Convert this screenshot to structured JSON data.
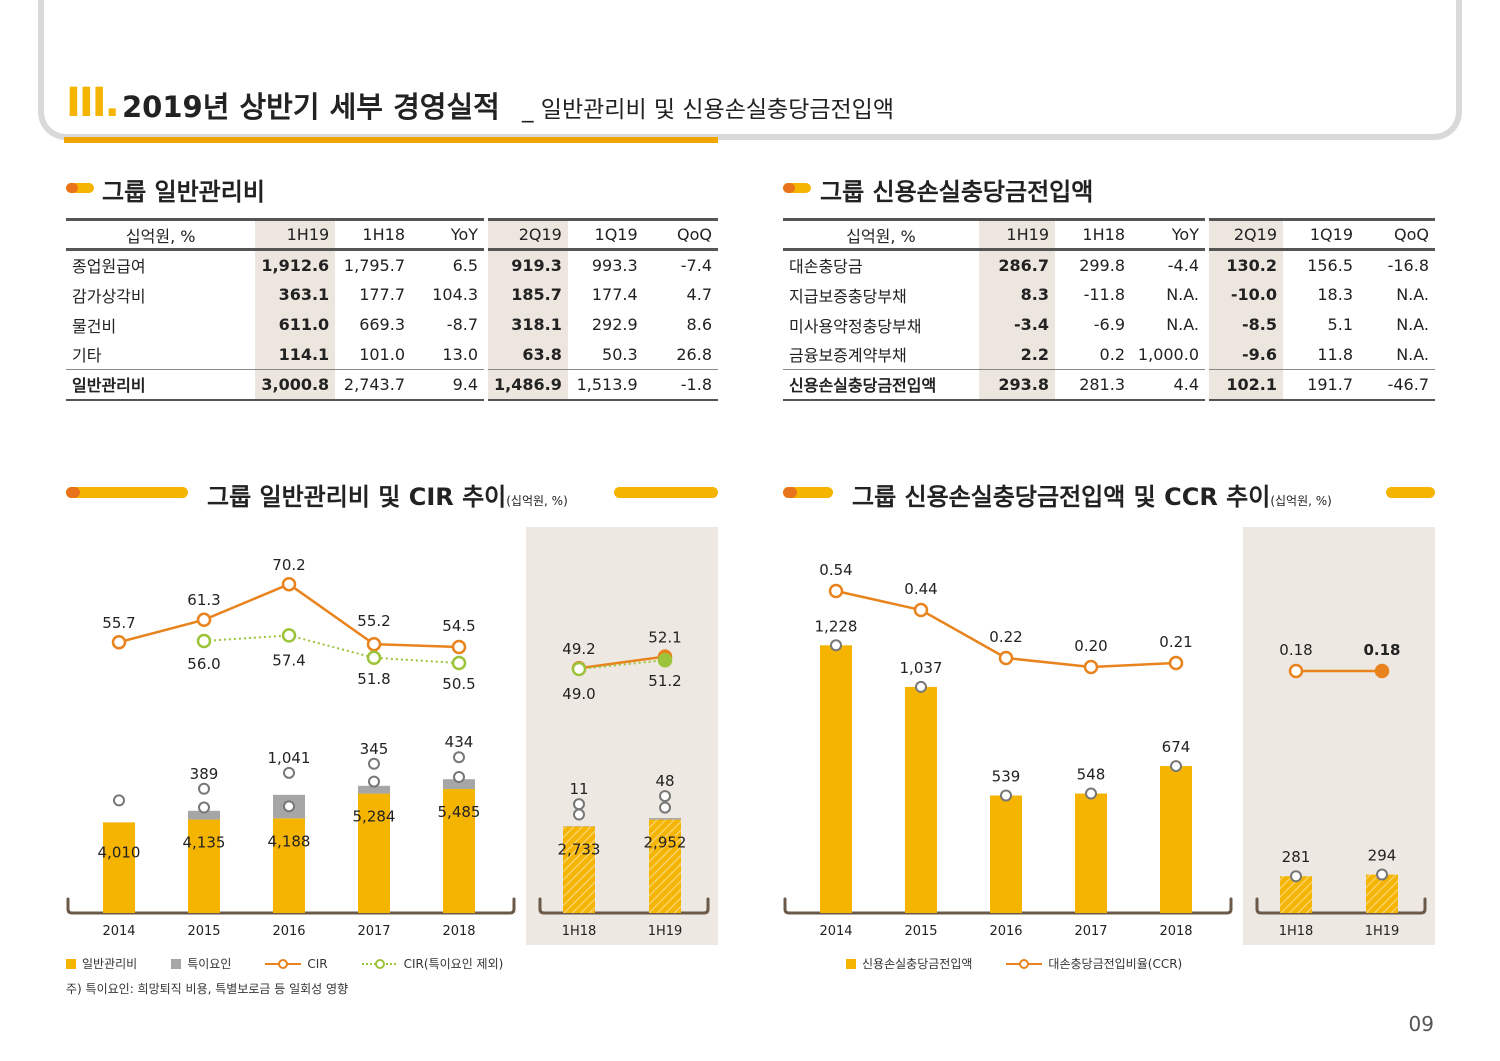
{
  "header": {
    "roman": "III",
    "title": "2019년 상반기 세부 경영실적",
    "subtitle": "_ 일반관리비 및 신용손실충당금전입액"
  },
  "left_table": {
    "title": "그룹 일반관리비",
    "headers": [
      "십억원, %",
      "1H19",
      "1H18",
      "YoY",
      "2Q19",
      "1Q19",
      "QoQ"
    ],
    "rows": [
      [
        "종업원급여",
        "1,912.6",
        "1,795.7",
        "6.5",
        "919.3",
        "993.3",
        "-7.4"
      ],
      [
        "감가상각비",
        "363.1",
        "177.7",
        "104.3",
        "185.7",
        "177.4",
        "4.7"
      ],
      [
        "물건비",
        "611.0",
        "669.3",
        "-8.7",
        "318.1",
        "292.9",
        "8.6"
      ],
      [
        "기타",
        "114.1",
        "101.0",
        "13.0",
        "63.8",
        "50.3",
        "26.8"
      ],
      [
        "일반관리비",
        "3,000.8",
        "2,743.7",
        "9.4",
        "1,486.9",
        "1,513.9",
        "-1.8"
      ]
    ]
  },
  "right_table": {
    "title": "그룹 신용손실충당금전입액",
    "headers": [
      "십억원, %",
      "1H19",
      "1H18",
      "YoY",
      "2Q19",
      "1Q19",
      "QoQ"
    ],
    "rows": [
      [
        "대손충당금",
        "286.7",
        "299.8",
        "-4.4",
        "130.2",
        "156.5",
        "-16.8"
      ],
      [
        "지급보증충당부채",
        "8.3",
        "-11.8",
        "N.A.",
        "-10.0",
        "18.3",
        "N.A."
      ],
      [
        "미사용약정충당부채",
        "-3.4",
        "-6.9",
        "N.A.",
        "-8.5",
        "5.1",
        "N.A."
      ],
      [
        "금융보증계약부채",
        "2.2",
        "0.2",
        "1,000.0",
        "-9.6",
        "11.8",
        "N.A."
      ],
      [
        "신용손실충당금전입액",
        "293.8",
        "281.3",
        "4.4",
        "102.1",
        "191.7",
        "-46.7"
      ]
    ]
  },
  "left_chart_title": "그룹 일반관리비 및 CIR 추이",
  "right_chart_title": "그룹 신용손실충당금전입액 및 CCR 추이",
  "unit_note": "(십억원, %)",
  "chart_data": [
    {
      "type": "bar",
      "title": "그룹 일반관리비 및 CIR 추이",
      "categories": [
        "2014",
        "2015",
        "2016",
        "2017",
        "2018",
        "1H18",
        "1H19"
      ],
      "series": [
        {
          "name": "일반관리비",
          "values": [
            4010,
            4135,
            4188,
            5284,
            5485,
            2733,
            2952
          ],
          "labels": [
            "4,010",
            "4,135",
            "4,188",
            "5,284",
            "5,485",
            "2,733",
            "2,952"
          ],
          "color": "#f5b400"
        },
        {
          "name": "특이요인",
          "values": [
            null,
            389,
            1041,
            345,
            434,
            11,
            48
          ],
          "labels": [
            "",
            "389",
            "1,041",
            "345",
            "434",
            "11",
            "48"
          ],
          "color": "#a6a6a6"
        },
        {
          "name": "CIR",
          "type": "line",
          "values": [
            55.7,
            61.3,
            70.2,
            55.2,
            54.5,
            49.2,
            52.1
          ],
          "labels": [
            "55.7",
            "61.3",
            "70.2",
            "55.2",
            "54.5",
            "49.2",
            "52.1"
          ],
          "color": "#e8831d"
        },
        {
          "name": "CIR(특이요인 제외)",
          "type": "line",
          "values": [
            null,
            56.0,
            57.4,
            51.8,
            50.5,
            49.0,
            51.2
          ],
          "labels": [
            "",
            "56.0",
            "57.4",
            "51.8",
            "50.5",
            "49.0",
            "51.2"
          ],
          "color": "#9cc43a"
        }
      ]
    },
    {
      "type": "bar",
      "title": "그룹 신용손실충당금전입액 및 CCR 추이",
      "categories": [
        "2014",
        "2015",
        "2016",
        "2017",
        "2018",
        "1H18",
        "1H19"
      ],
      "series": [
        {
          "name": "신용손실충당금전입액",
          "values": [
            1228,
            1037,
            539,
            548,
            674,
            281,
            294
          ],
          "labels": [
            "1,228",
            "1,037",
            "539",
            "548",
            "674",
            "281",
            "294"
          ],
          "color": "#f5b400"
        },
        {
          "name": "대손충당금전입비율(CCR)",
          "type": "line",
          "values": [
            0.54,
            0.44,
            0.22,
            0.2,
            0.21,
            0.18,
            0.18
          ],
          "labels": [
            "0.54",
            "0.44",
            "0.22",
            "0.20",
            "0.21",
            "0.18",
            "0.18"
          ],
          "color": "#e8831d"
        }
      ]
    }
  ],
  "legend_left": [
    "일반관리비",
    "특이요인",
    "CIR",
    "CIR(특이요인 제외)"
  ],
  "legend_right": [
    "신용손실충당금전입액",
    "대손충당금전입비율(CCR)"
  ],
  "footnote": "주) 특이요인: 희망퇴직 비용, 특별보로금 등 일회성 영향",
  "page_number": "09",
  "colors": {
    "accent": "#f5b400",
    "orange": "#e8831d",
    "green": "#9cc43a",
    "gray": "#a6a6a6",
    "shade": "#ede8e1"
  }
}
